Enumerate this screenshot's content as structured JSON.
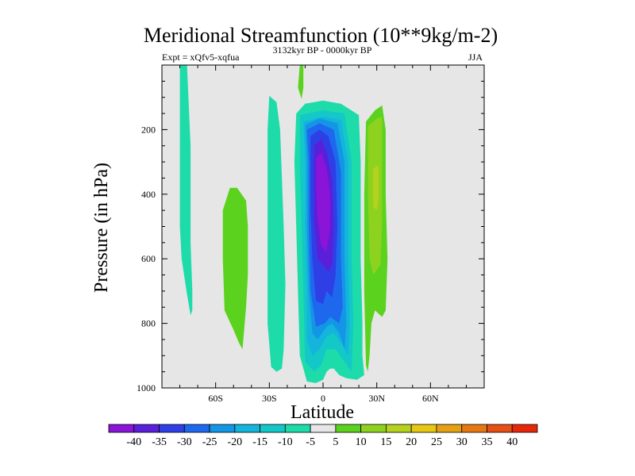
{
  "chart_data": {
    "type": "contour",
    "title": "Meridional Streamfunction (10**9kg/m-2)",
    "left_label": "Expt = xQfv5-xqfua",
    "center_label": "3132kyr BP - 0000kyr BP",
    "right_label": "JJA",
    "xlabel": "Latitude",
    "ylabel": "Pressure (in hPa)",
    "xlim": [
      -90,
      90
    ],
    "ylim": [
      1000,
      0
    ],
    "xticks": [
      {
        "value": -60,
        "label": "60S"
      },
      {
        "value": -30,
        "label": "30S"
      },
      {
        "value": 0,
        "label": "0"
      },
      {
        "value": 30,
        "label": "30N"
      },
      {
        "value": 60,
        "label": "60N"
      }
    ],
    "yticks": [
      {
        "value": 200,
        "label": "200"
      },
      {
        "value": 400,
        "label": "400"
      },
      {
        "value": 600,
        "label": "600"
      },
      {
        "value": 800,
        "label": "800"
      },
      {
        "value": 1000,
        "label": "1000"
      }
    ],
    "background_color": "#e6e6e6",
    "colorbar": {
      "labels": [
        "-40",
        "-35",
        "-30",
        "-25",
        "-20",
        "-15",
        "-10",
        "-5",
        "5",
        "10",
        "15",
        "20",
        "25",
        "30",
        "35",
        "40"
      ],
      "colors": [
        "#8a14d8",
        "#5a1fd8",
        "#2e3fe6",
        "#1e68ee",
        "#1496e6",
        "#14b4dc",
        "#14c8c8",
        "#1edcaa",
        "#e6e6e6",
        "#5ad21e",
        "#8cd21e",
        "#b4d21e",
        "#e6c814",
        "#e6a014",
        "#e67814",
        "#e65014",
        "#e6280a"
      ]
    },
    "contour_regions": [
      {
        "name": "sh-polar-band",
        "color": "#1edcaa",
        "points": [
          [
            -80,
            0
          ],
          [
            -76,
            0
          ],
          [
            -74,
            250
          ],
          [
            -74,
            550
          ],
          [
            -73,
            700
          ],
          [
            -73,
            760
          ],
          [
            -74,
            775
          ],
          [
            -76,
            710
          ],
          [
            -79,
            600
          ],
          [
            -80,
            500
          ]
        ]
      },
      {
        "name": "sh-midlat-positive",
        "color": "#5ad21e",
        "points": [
          [
            -52,
            380
          ],
          [
            -48,
            380
          ],
          [
            -43,
            420
          ],
          [
            -42,
            500
          ],
          [
            -42,
            650
          ],
          [
            -43,
            750
          ],
          [
            -45,
            880
          ],
          [
            -47,
            860
          ],
          [
            -50,
            820
          ],
          [
            -55,
            760
          ],
          [
            -56,
            600
          ],
          [
            -56,
            450
          ]
        ]
      },
      {
        "name": "sh-subtropical-band",
        "color": "#1edcaa",
        "points": [
          [
            -30,
            95
          ],
          [
            -26,
            115
          ],
          [
            -24,
            200
          ],
          [
            -22,
            500
          ],
          [
            -21,
            680
          ],
          [
            -22,
            880
          ],
          [
            -23,
            940
          ],
          [
            -26,
            950
          ],
          [
            -29,
            935
          ],
          [
            -31,
            800
          ],
          [
            -31,
            500
          ],
          [
            -31,
            200
          ]
        ]
      },
      {
        "name": "tropical-outer",
        "color": "#1edcaa",
        "points": [
          [
            -15,
            150
          ],
          [
            -10,
            120
          ],
          [
            0,
            110
          ],
          [
            10,
            120
          ],
          [
            20,
            155
          ],
          [
            21,
            300
          ],
          [
            21,
            600
          ],
          [
            22,
            800
          ],
          [
            22,
            900
          ],
          [
            23,
            960
          ],
          [
            19,
            975
          ],
          [
            13,
            970
          ],
          [
            9,
            960
          ],
          [
            6,
            940
          ],
          [
            4,
            940
          ],
          [
            2,
            950
          ],
          [
            0,
            975
          ],
          [
            -4,
            985
          ],
          [
            -9,
            980
          ],
          [
            -13,
            900
          ],
          [
            -14,
            700
          ],
          [
            -15,
            500
          ],
          [
            -16,
            300
          ]
        ]
      },
      {
        "name": "tropical-15",
        "color": "#14c8c8",
        "points": [
          [
            -13,
            155
          ],
          [
            0,
            140
          ],
          [
            12,
            150
          ],
          [
            16,
            300
          ],
          [
            16,
            600
          ],
          [
            17,
            800
          ],
          [
            16,
            950
          ],
          [
            12,
            920
          ],
          [
            7,
            880
          ],
          [
            2,
            880
          ],
          [
            -1,
            930
          ],
          [
            -5,
            950
          ],
          [
            -10,
            920
          ],
          [
            -11,
            700
          ],
          [
            -12,
            500
          ],
          [
            -13,
            300
          ]
        ]
      },
      {
        "name": "tropical-20",
        "color": "#14b4dc",
        "points": [
          [
            -11,
            175
          ],
          [
            0,
            160
          ],
          [
            10,
            170
          ],
          [
            14,
            300
          ],
          [
            14,
            600
          ],
          [
            15,
            800
          ],
          [
            14,
            900
          ],
          [
            10,
            860
          ],
          [
            6,
            830
          ],
          [
            2,
            840
          ],
          [
            -2,
            880
          ],
          [
            -6,
            900
          ],
          [
            -9,
            850
          ],
          [
            -9,
            700
          ],
          [
            -10,
            500
          ],
          [
            -10,
            300
          ]
        ]
      },
      {
        "name": "tropical-25",
        "color": "#1496e6",
        "points": [
          [
            -10,
            185
          ],
          [
            -2,
            165
          ],
          [
            8,
            180
          ],
          [
            12,
            300
          ],
          [
            12,
            600
          ],
          [
            13,
            800
          ],
          [
            12,
            880
          ],
          [
            9,
            830
          ],
          [
            5,
            800
          ],
          [
            2,
            810
          ],
          [
            -3,
            850
          ],
          [
            -6,
            830
          ],
          [
            -8,
            700
          ],
          [
            -9,
            500
          ],
          [
            -9,
            300
          ]
        ]
      },
      {
        "name": "tropical-30",
        "color": "#1e68ee",
        "points": [
          [
            -9,
            200
          ],
          [
            -2,
            180
          ],
          [
            6,
            200
          ],
          [
            10,
            330
          ],
          [
            10,
            600
          ],
          [
            11,
            750
          ],
          [
            9,
            800
          ],
          [
            4,
            780
          ],
          [
            1,
            800
          ],
          [
            -4,
            810
          ],
          [
            -7,
            700
          ],
          [
            -8,
            500
          ],
          [
            -8,
            300
          ]
        ]
      },
      {
        "name": "tropical-35",
        "color": "#2e3fe6",
        "points": [
          [
            -7,
            220
          ],
          [
            -2,
            200
          ],
          [
            3,
            220
          ],
          [
            7,
            300
          ],
          [
            8,
            500
          ],
          [
            7,
            650
          ],
          [
            5,
            720
          ],
          [
            2,
            700
          ],
          [
            0,
            740
          ],
          [
            -4,
            730
          ],
          [
            -6,
            600
          ],
          [
            -7,
            450
          ]
        ]
      },
      {
        "name": "tropical-40",
        "color": "#5a1fd8",
        "points": [
          [
            -5,
            250
          ],
          [
            -1,
            230
          ],
          [
            2,
            270
          ],
          [
            5,
            350
          ],
          [
            6,
            500
          ],
          [
            5,
            620
          ],
          [
            3,
            640
          ],
          [
            0,
            620
          ],
          [
            -3,
            600
          ],
          [
            -5,
            480
          ],
          [
            -5,
            350
          ]
        ]
      },
      {
        "name": "tropical-core",
        "color": "#8a14d8",
        "points": [
          [
            -4,
            290
          ],
          [
            -1,
            270
          ],
          [
            2,
            320
          ],
          [
            4,
            400
          ],
          [
            4,
            500
          ],
          [
            2,
            580
          ],
          [
            -1,
            560
          ],
          [
            -3,
            480
          ],
          [
            -4,
            380
          ]
        ]
      },
      {
        "name": "nh-subtropical-pos",
        "color": "#5ad21e",
        "points": [
          [
            24,
            175
          ],
          [
            29,
            140
          ],
          [
            33,
            125
          ],
          [
            35,
            200
          ],
          [
            35,
            400
          ],
          [
            36,
            600
          ],
          [
            35,
            760
          ],
          [
            33,
            780
          ],
          [
            31,
            770
          ],
          [
            29,
            760
          ],
          [
            27,
            800
          ],
          [
            26,
            900
          ],
          [
            25,
            950
          ],
          [
            24,
            930
          ],
          [
            23,
            700
          ],
          [
            23,
            400
          ]
        ]
      },
      {
        "name": "nh-subtropical-10",
        "color": "#8cd21e",
        "points": [
          [
            25,
            190
          ],
          [
            30,
            165
          ],
          [
            33,
            160
          ],
          [
            33,
            300
          ],
          [
            33,
            500
          ],
          [
            32,
            620
          ],
          [
            28,
            650
          ],
          [
            26,
            600
          ],
          [
            25,
            400
          ]
        ]
      },
      {
        "name": "nh-subtropical-15",
        "color": "#b4d21e",
        "points": [
          [
            28,
            320
          ],
          [
            31,
            310
          ],
          [
            31,
            420
          ],
          [
            30,
            450
          ],
          [
            28,
            440
          ]
        ]
      },
      {
        "name": "equatorial-top-sliver",
        "color": "#5ad21e",
        "points": [
          [
            -13,
            0
          ],
          [
            -11,
            0
          ],
          [
            -11,
            70
          ],
          [
            -12,
            105
          ],
          [
            -14,
            70
          ]
        ]
      }
    ]
  }
}
